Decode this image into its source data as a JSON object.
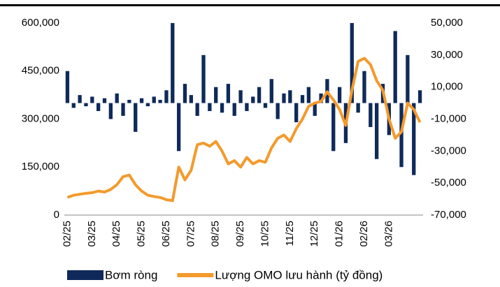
{
  "chart_data": {
    "type": "bar-line",
    "categories": [
      "02/25",
      null,
      null,
      null,
      "03/25",
      null,
      null,
      null,
      "04/25",
      null,
      null,
      null,
      "05/25",
      null,
      null,
      null,
      "06/25",
      null,
      null,
      null,
      "07/25",
      null,
      null,
      null,
      "08/25",
      null,
      null,
      null,
      "09/25",
      null,
      null,
      null,
      "10/25",
      null,
      null,
      null,
      "11/25",
      null,
      null,
      null,
      "12/25",
      null,
      null,
      null,
      "01/26",
      null,
      null,
      null,
      "02/26",
      null,
      null,
      null,
      "03/26",
      null,
      null,
      null,
      null,
      null
    ],
    "series": [
      {
        "name": "Bơm ròng",
        "type": "bar",
        "axis": "y2",
        "color": "#0f2a5a",
        "values": [
          20000,
          -3000,
          5000,
          -2000,
          4000,
          -5000,
          3000,
          -10000,
          6000,
          -8000,
          2000,
          -18000,
          3000,
          -2000,
          4000,
          2000,
          8000,
          50000,
          -30000,
          12000,
          5000,
          -8000,
          30000,
          -5000,
          10000,
          -6000,
          12000,
          -8000,
          8000,
          -5000,
          4000,
          10000,
          -3000,
          15000,
          -10000,
          6000,
          8000,
          -12000,
          5000,
          10000,
          -8000,
          6000,
          15000,
          -30000,
          10000,
          -25000,
          50000,
          -6000,
          20000,
          -15000,
          -35000,
          12000,
          -20000,
          45000,
          -40000,
          30000,
          -45000,
          8000
        ]
      },
      {
        "name": "Lượng OMO lưu hành (tỷ đồng)",
        "type": "line",
        "color": "#f39a2c",
        "values": [
          55000,
          62000,
          65000,
          68000,
          70000,
          75000,
          72000,
          80000,
          95000,
          120000,
          125000,
          95000,
          75000,
          62000,
          58000,
          55000,
          48000,
          45000,
          150000,
          110000,
          140000,
          220000,
          225000,
          215000,
          230000,
          200000,
          160000,
          170000,
          150000,
          180000,
          160000,
          170000,
          165000,
          210000,
          240000,
          250000,
          230000,
          270000,
          300000,
          340000,
          350000,
          355000,
          385000,
          360000,
          330000,
          280000,
          390000,
          480000,
          490000,
          470000,
          420000,
          390000,
          300000,
          240000,
          260000,
          350000,
          330000,
          290000
        ]
      }
    ],
    "ylim": [
      0,
      600000
    ],
    "yticks": [
      0,
      {
        "value": 150000,
        "label": "150,000"
      },
      {
        "value": 300000,
        "label": "300,000"
      },
      {
        "value": 450000,
        "label": "450,000"
      },
      {
        "value": 600000,
        "label": "600,000"
      }
    ],
    "y2lim": [
      -70000,
      50000
    ],
    "y2ticks": [
      {
        "value": -70000,
        "label": "-70,000"
      },
      {
        "value": -50000,
        "label": "-50,000"
      },
      {
        "value": -30000,
        "label": "-30,000"
      },
      {
        "value": -10000,
        "label": "-10,000"
      },
      {
        "value": 10000,
        "label": "10,000"
      },
      {
        "value": 30000,
        "label": "30,000"
      },
      {
        "value": 50000,
        "label": "50,000"
      }
    ],
    "grid": false,
    "legend": "bottom"
  }
}
